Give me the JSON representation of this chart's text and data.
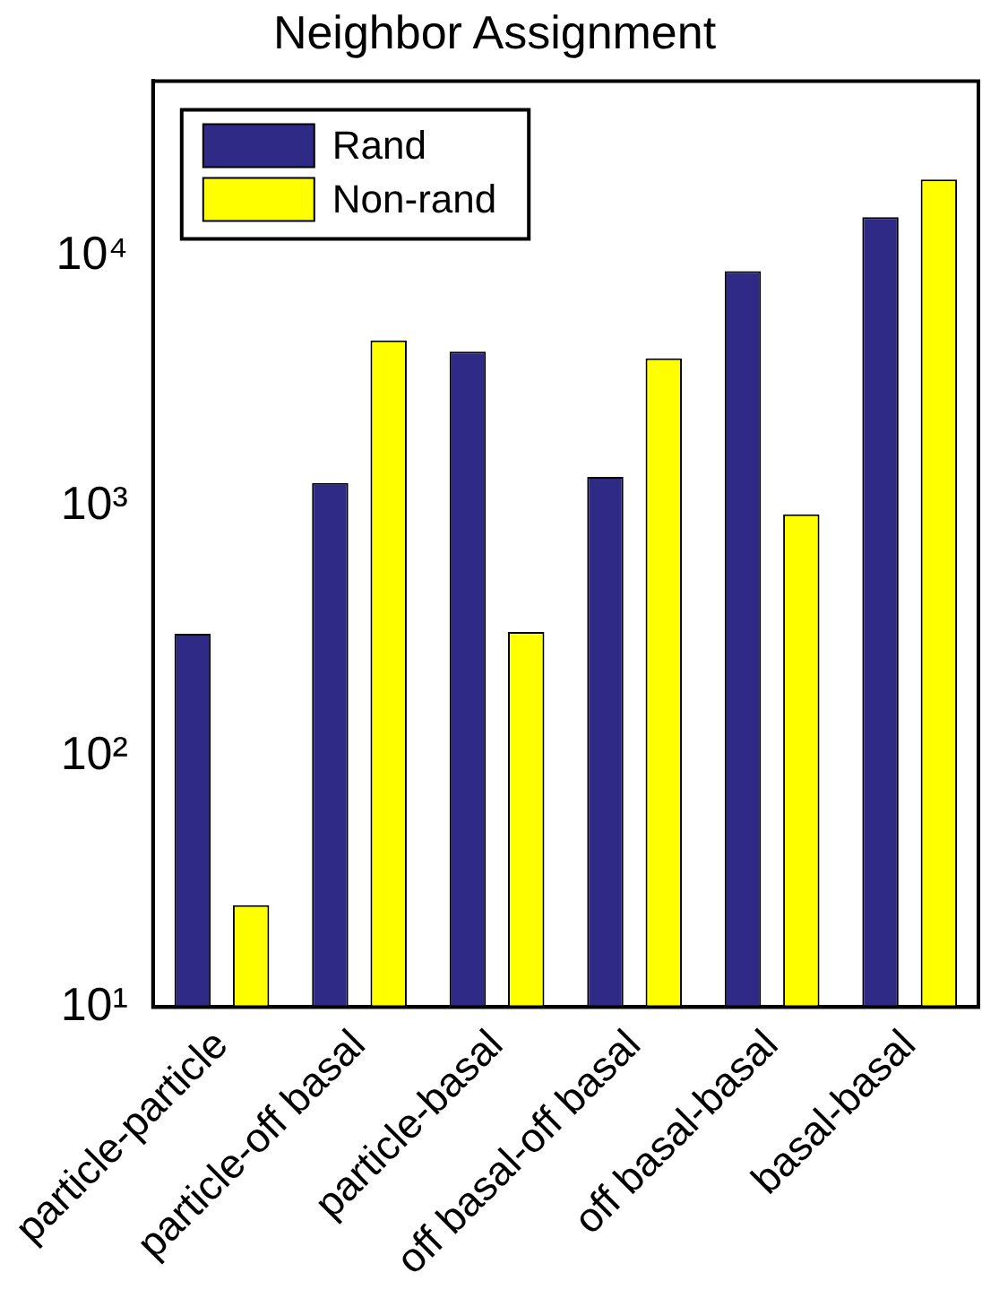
{
  "chart_data": {
    "type": "bar",
    "title": "Neighbor Assignment",
    "categories": [
      "particle-particle",
      "particle-off basal",
      "particle-basal",
      "off basal-off basal",
      "off basal-basal",
      "basal-basal"
    ],
    "series": [
      {
        "name": "Rand",
        "color": "#2e2a86",
        "values": [
          310,
          1240,
          4150,
          1310,
          8700,
          14300
        ]
      },
      {
        "name": "Non-rand",
        "color": "#ffff00",
        "values": [
          25.5,
          4600,
          315,
          3900,
          930,
          20200
        ]
      }
    ],
    "log": "y",
    "ylim": [
      10,
      50000
    ],
    "yticks": [
      {
        "value": 10,
        "label": "10¹"
      },
      {
        "value": 100,
        "label": "10²"
      },
      {
        "value": 1000,
        "label": "10³"
      },
      {
        "value": 10000,
        "label": "10⁴"
      }
    ],
    "grid": false,
    "legend": "top left"
  }
}
